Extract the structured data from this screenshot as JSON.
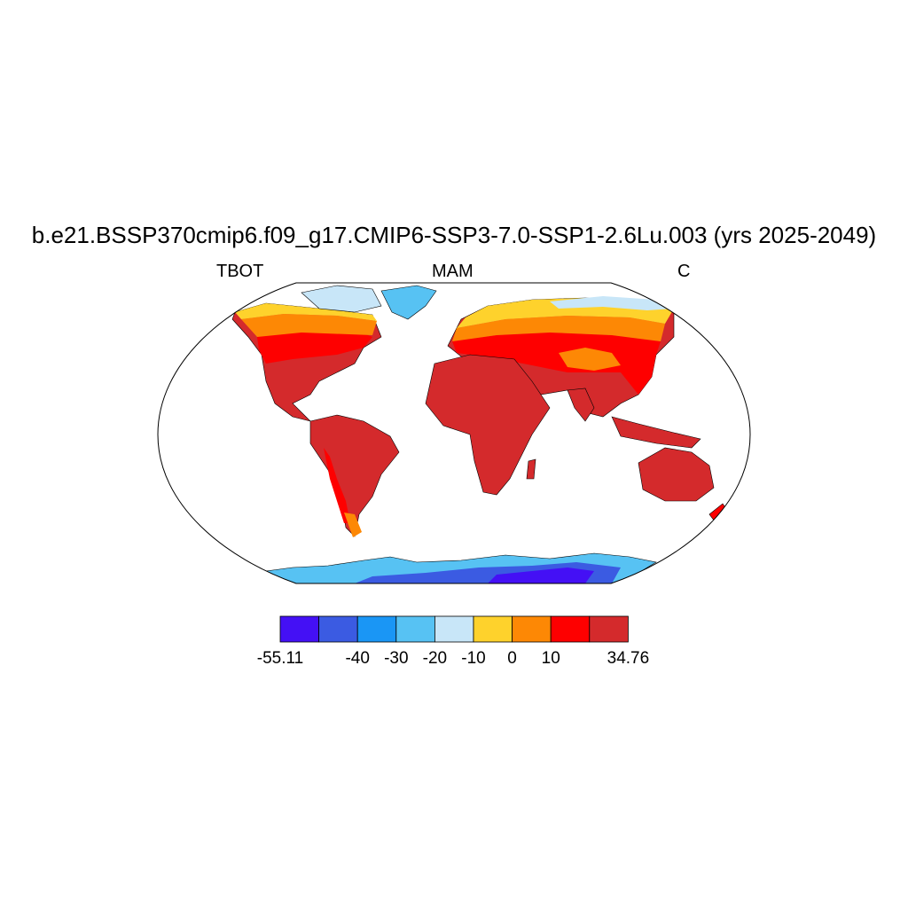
{
  "title": "b.e21.BSSP370cmip6.f09_g17.CMIP6-SSP3-7.0-SSP1-2.6Lu.003 (yrs 2025-2049)",
  "subtitle_left": "TBOT",
  "subtitle_center": "MAM",
  "subtitle_right": "C",
  "colors": {
    "bins": [
      "#4410f5",
      "#3b5be2",
      "#1a96f5",
      "#57c2f3",
      "#c8e6f8",
      "#fed22c",
      "#fd8805",
      "#fe0000",
      "#d42a2c"
    ],
    "ocean": "#ffffff",
    "coast": "#000000"
  },
  "colorbar": {
    "labels": [
      "-55.11",
      "-40",
      "-30",
      "-20",
      "-10",
      "0",
      "10",
      "34.76"
    ],
    "label_positions": [
      0,
      2,
      3,
      4,
      5,
      6,
      7,
      9
    ],
    "min": -55.11,
    "max": 34.76
  }
}
